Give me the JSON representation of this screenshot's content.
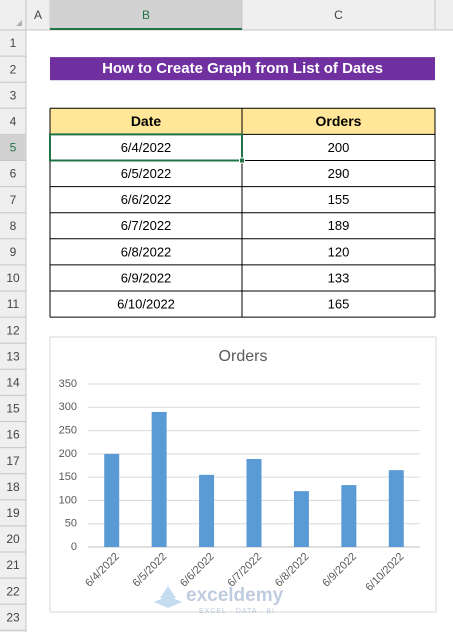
{
  "column_headers": [
    "A",
    "B",
    "C"
  ],
  "row_numbers": [
    1,
    2,
    3,
    4,
    5,
    6,
    7,
    8,
    9,
    10,
    11,
    12,
    13,
    14,
    15,
    16,
    17,
    18,
    19,
    20,
    21,
    22,
    23
  ],
  "title": "How to Create Graph from List of Dates",
  "table": {
    "header": [
      "Date",
      "Orders"
    ],
    "rows": [
      [
        "6/4/2022",
        200
      ],
      [
        "6/5/2022",
        290
      ],
      [
        "6/6/2022",
        155
      ],
      [
        "6/7/2022",
        189
      ],
      [
        "6/8/2022",
        120
      ],
      [
        "6/9/2022",
        133
      ],
      [
        "6/10/2022",
        165
      ]
    ]
  },
  "chart_data": {
    "type": "bar",
    "title": "Orders",
    "categories": [
      "6/4/2022",
      "6/5/2022",
      "6/6/2022",
      "6/7/2022",
      "6/8/2022",
      "6/9/2022",
      "6/10/2022"
    ],
    "values": [
      200,
      290,
      155,
      189,
      120,
      133,
      165
    ],
    "color": "#5b9bd5",
    "ylim": [
      0,
      350
    ],
    "yticks": [
      0,
      50,
      100,
      150,
      200,
      250,
      300,
      350
    ],
    "grid": true
  },
  "watermark": {
    "brand": "exceldemy",
    "tagline": "EXCEL · DATA · BI"
  }
}
